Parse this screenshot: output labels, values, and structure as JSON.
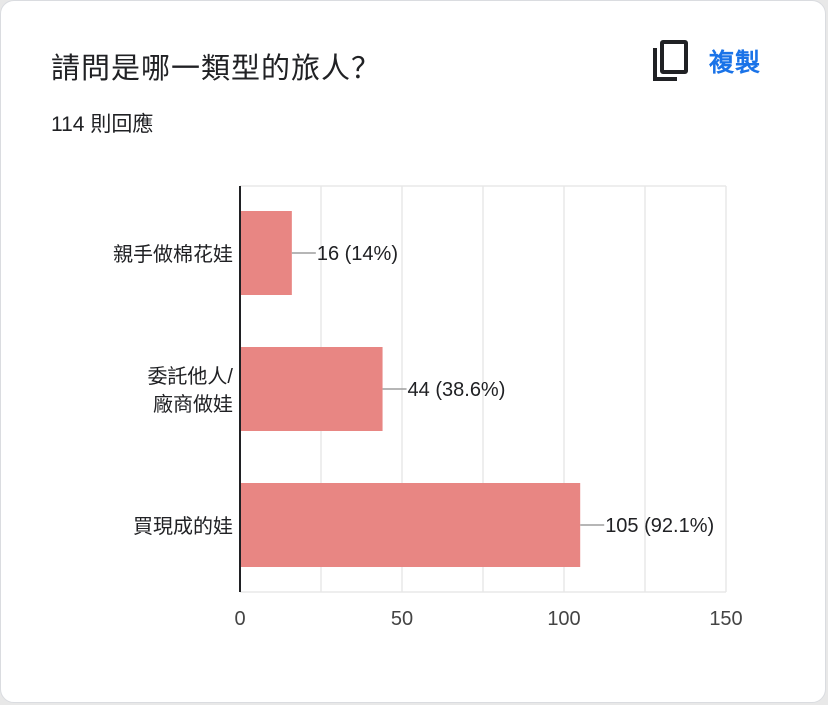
{
  "question": {
    "title": "請問是哪一類型的旅人？",
    "response_count": "114 則回應",
    "copy_label": "複製",
    "copy_icon": "copy-icon"
  },
  "colors": {
    "bar": "#e88683",
    "axis": "#202124",
    "grid": "#e8e8e8",
    "text": "#202124",
    "accent": "#1a73e8"
  },
  "chart_data": {
    "type": "bar",
    "orientation": "horizontal",
    "categories": [
      [
        "親手做棉花娃"
      ],
      [
        "委託他人/",
        "廠商做娃"
      ],
      [
        "買現成的娃"
      ]
    ],
    "values": [
      16,
      44,
      105
    ],
    "data_labels": [
      "16 (14%)",
      "44 (38.6%)",
      "105 (92.1%)"
    ],
    "xlim": [
      0,
      150
    ],
    "xticks": [
      0,
      50,
      100,
      150
    ],
    "xtick_labels": [
      "0",
      "50",
      "100",
      "150"
    ],
    "grid": true,
    "title": "",
    "xlabel": "",
    "ylabel": ""
  }
}
